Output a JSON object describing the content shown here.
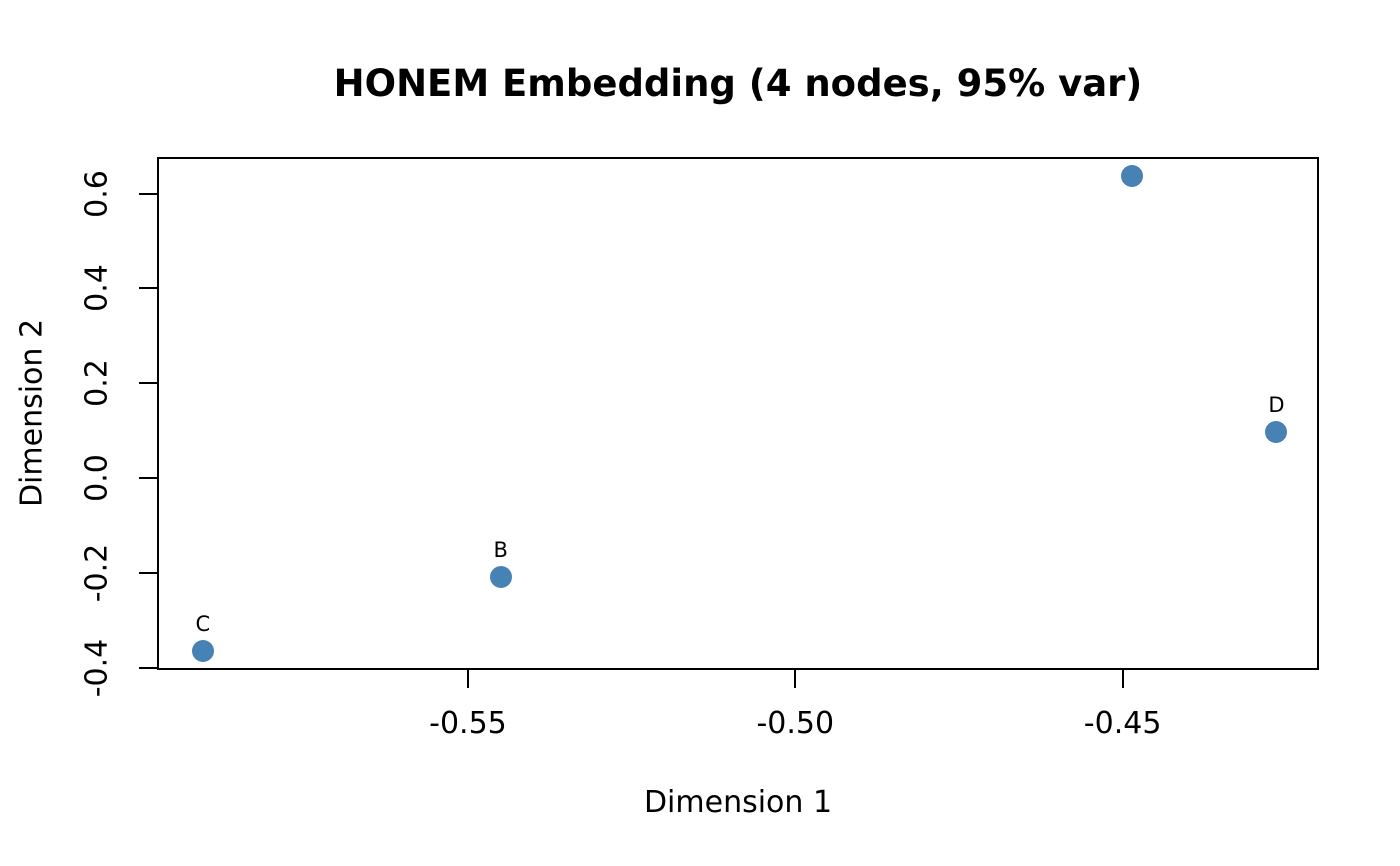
{
  "chart_data": {
    "type": "scatter",
    "title": "HONEM Embedding (4 nodes, 95% var)",
    "xlabel": "Dimension 1",
    "ylabel": "Dimension 2",
    "xlim": [
      -0.5975,
      -0.42
    ],
    "ylim": [
      -0.405,
      0.677
    ],
    "x_ticks": [
      {
        "value": -0.55,
        "label": "-0.55"
      },
      {
        "value": -0.5,
        "label": "-0.50"
      },
      {
        "value": -0.45,
        "label": "-0.45"
      }
    ],
    "y_ticks": [
      {
        "value": -0.4,
        "label": "-0.4"
      },
      {
        "value": -0.2,
        "label": "-0.2"
      },
      {
        "value": 0.0,
        "label": "0.0"
      },
      {
        "value": 0.2,
        "label": "0.2"
      },
      {
        "value": 0.4,
        "label": "0.4"
      },
      {
        "value": 0.6,
        "label": "0.6"
      }
    ],
    "points": [
      {
        "label": "",
        "x": -0.4485,
        "y": 0.637
      },
      {
        "label": "B",
        "x": -0.545,
        "y": -0.208
      },
      {
        "label": "C",
        "x": -0.5905,
        "y": -0.365
      },
      {
        "label": "D",
        "x": -0.4265,
        "y": 0.098
      }
    ],
    "point_color": "#4682B4",
    "axis_color": "#000000",
    "text_color": "#000000",
    "background": "#ffffff",
    "grid": false,
    "legend": null
  }
}
